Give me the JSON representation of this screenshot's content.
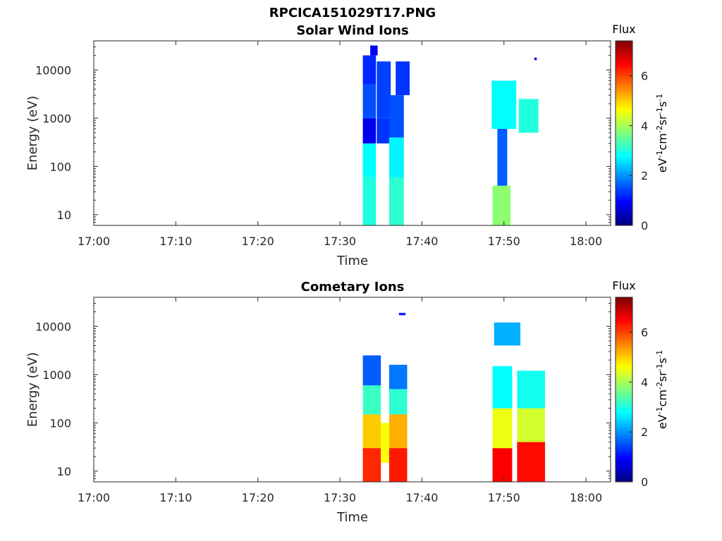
{
  "figure": {
    "title": "RPCICA151029T17.PNG"
  },
  "colormap": [
    "#00007f",
    "#0000ff",
    "#007fff",
    "#00ffff",
    "#7fff7f",
    "#ffff00",
    "#ff7f00",
    "#ff0000",
    "#7f0000"
  ],
  "chart_data": [
    {
      "type": "heatmap",
      "title": "Solar Wind Ions",
      "xlabel": "Time",
      "ylabel": "Energy (eV)",
      "xlim": [
        "17:00",
        "18:03"
      ],
      "ylim": [
        6,
        40000
      ],
      "yscale": "log",
      "xticks": [
        "17:00",
        "17:10",
        "17:20",
        "17:30",
        "17:40",
        "17:50",
        "18:00"
      ],
      "yticks": [
        10,
        100,
        1000,
        10000
      ],
      "ytick_labels": [
        "10",
        "100",
        "1000",
        "10000"
      ],
      "colorbar": {
        "title": "Flux",
        "label": "eV-1cm-2sr-1s-1",
        "range": [
          0,
          7.4
        ],
        "ticks": [
          0,
          2,
          4,
          6
        ]
      },
      "cells": [
        {
          "t0": "17:32.8",
          "t1": "17:34.4",
          "e0": 6,
          "e1": 60,
          "flux": 3.0
        },
        {
          "t0": "17:32.8",
          "t1": "17:34.4",
          "e0": 60,
          "e1": 300,
          "flux": 2.8
        },
        {
          "t0": "17:32.8",
          "t1": "17:34.4",
          "e0": 300,
          "e1": 1000,
          "flux": 0.8
        },
        {
          "t0": "17:32.8",
          "t1": "17:34.4",
          "e0": 1000,
          "e1": 5000,
          "flux": 1.5
        },
        {
          "t0": "17:32.8",
          "t1": "17:34.4",
          "e0": 5000,
          "e1": 20000,
          "flux": 1.2
        },
        {
          "t0": "17:33.7",
          "t1": "17:34.6",
          "e0": 20000,
          "e1": 32000,
          "flux": 0.8
        },
        {
          "t0": "17:34.5",
          "t1": "17:36.2",
          "e0": 300,
          "e1": 1000,
          "flux": 1.3
        },
        {
          "t0": "17:34.5",
          "t1": "17:36.2",
          "e0": 1000,
          "e1": 15000,
          "flux": 1.4
        },
        {
          "t0": "17:36.0",
          "t1": "17:37.8",
          "e0": 6,
          "e1": 60,
          "flux": 3.1
        },
        {
          "t0": "17:36.0",
          "t1": "17:37.8",
          "e0": 60,
          "e1": 400,
          "flux": 2.7
        },
        {
          "t0": "17:36.0",
          "t1": "17:37.8",
          "e0": 400,
          "e1": 3000,
          "flux": 1.5
        },
        {
          "t0": "17:36.8",
          "t1": "17:38.5",
          "e0": 3000,
          "e1": 15000,
          "flux": 1.3
        },
        {
          "t0": "17:48.6",
          "t1": "17:50.8",
          "e0": 6,
          "e1": 40,
          "flux": 3.8
        },
        {
          "t0": "17:49.2",
          "t1": "17:50.4",
          "e0": 40,
          "e1": 600,
          "flux": 1.6
        },
        {
          "t0": "17:48.5",
          "t1": "17:51.5",
          "e0": 600,
          "e1": 6000,
          "flux": 2.8
        },
        {
          "t0": "17:51.8",
          "t1": "17:54.2",
          "e0": 500,
          "e1": 2500,
          "flux": 3.0
        },
        {
          "t0": "17:53.7",
          "t1": "17:54.0",
          "e0": 16000,
          "e1": 18000,
          "flux": 0.6
        }
      ]
    },
    {
      "type": "heatmap",
      "title": "Cometary Ions",
      "xlabel": "Time",
      "ylabel": "Energy (eV)",
      "xlim": [
        "17:00",
        "18:03"
      ],
      "ylim": [
        6,
        40000
      ],
      "yscale": "log",
      "xticks": [
        "17:00",
        "17:10",
        "17:20",
        "17:30",
        "17:40",
        "17:50",
        "18:00"
      ],
      "yticks": [
        10,
        100,
        1000,
        10000
      ],
      "ytick_labels": [
        "10",
        "100",
        "1000",
        "10000"
      ],
      "colorbar": {
        "title": "Flux",
        "label": "eV-1cm-2sr-1s-1",
        "range": [
          0,
          7.4
        ],
        "ticks": [
          0,
          2,
          4,
          6
        ]
      },
      "cells": [
        {
          "t0": "17:32.8",
          "t1": "17:35.0",
          "e0": 6,
          "e1": 30,
          "flux": 6.2
        },
        {
          "t0": "17:32.8",
          "t1": "17:35.0",
          "e0": 30,
          "e1": 150,
          "flux": 5.0
        },
        {
          "t0": "17:32.8",
          "t1": "17:35.0",
          "e0": 150,
          "e1": 600,
          "flux": 3.2
        },
        {
          "t0": "17:32.8",
          "t1": "17:35.0",
          "e0": 600,
          "e1": 2500,
          "flux": 1.6
        },
        {
          "t0": "17:35.0",
          "t1": "17:36.0",
          "e0": 15,
          "e1": 100,
          "flux": 4.6
        },
        {
          "t0": "17:36.0",
          "t1": "17:38.2",
          "e0": 6,
          "e1": 30,
          "flux": 6.3
        },
        {
          "t0": "17:36.0",
          "t1": "17:38.2",
          "e0": 30,
          "e1": 150,
          "flux": 5.2
        },
        {
          "t0": "17:36.0",
          "t1": "17:38.2",
          "e0": 150,
          "e1": 500,
          "flux": 3.1
        },
        {
          "t0": "17:36.0",
          "t1": "17:38.2",
          "e0": 500,
          "e1": 1600,
          "flux": 1.8
        },
        {
          "t0": "17:37.2",
          "t1": "17:38.0",
          "e0": 17000,
          "e1": 19000,
          "flux": 1.1
        },
        {
          "t0": "17:48.6",
          "t1": "17:51.0",
          "e0": 6,
          "e1": 30,
          "flux": 6.5
        },
        {
          "t0": "17:48.6",
          "t1": "17:51.0",
          "e0": 30,
          "e1": 200,
          "flux": 4.5
        },
        {
          "t0": "17:48.6",
          "t1": "17:51.0",
          "e0": 200,
          "e1": 1500,
          "flux": 2.8
        },
        {
          "t0": "17:51.6",
          "t1": "17:55.0",
          "e0": 6,
          "e1": 40,
          "flux": 6.4
        },
        {
          "t0": "17:51.6",
          "t1": "17:55.0",
          "e0": 40,
          "e1": 200,
          "flux": 4.3
        },
        {
          "t0": "17:51.6",
          "t1": "17:55.0",
          "e0": 200,
          "e1": 1200,
          "flux": 2.9
        },
        {
          "t0": "17:48.8",
          "t1": "17:52.0",
          "e0": 4000,
          "e1": 12000,
          "flux": 2.2
        }
      ]
    }
  ]
}
